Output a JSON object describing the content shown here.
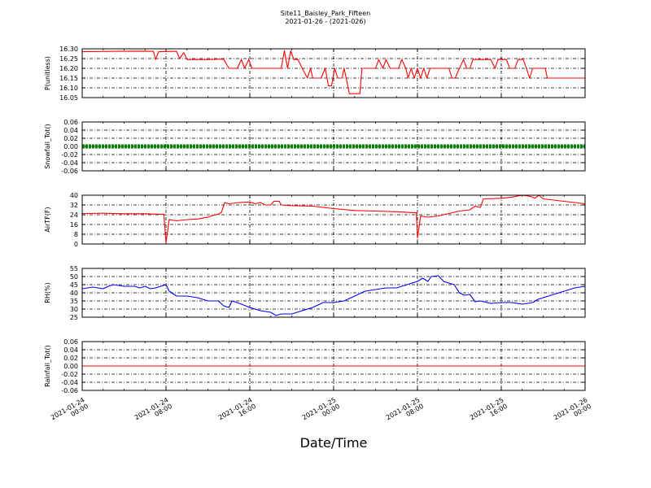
{
  "chart_data": {
    "type": "line",
    "title": "Site11_Baisley_Park_Fifteen",
    "subtitle": "2021-01-26 - (2021-026)",
    "xlabel": "Date/Time",
    "x_ticks": [
      "2021-01-24\n00:00",
      "2021-01-24\n08:00",
      "2021-01-24\n16:00",
      "2021-01-25\n00:00",
      "2021-01-25\n08:00",
      "2021-01-25\n16:00",
      "2021-01-26\n00:00"
    ],
    "x_range_hours": [
      0,
      48
    ],
    "grid": true,
    "panels": [
      {
        "ylabel": "P(unitless)",
        "ylim": [
          16.05,
          16.3
        ],
        "yticks": [
          "16.05",
          "16.10",
          "16.15",
          "16.20",
          "16.25",
          "16.30"
        ],
        "color": "#ff0000",
        "series": [
          {
            "values": [
              [
                0,
                16.285
              ],
              [
                3,
                16.287
              ],
              [
                6,
                16.288
              ],
              [
                6.8,
                16.287
              ],
              [
                7,
                16.245
              ],
              [
                7.3,
                16.285
              ],
              [
                9,
                16.287
              ],
              [
                9.3,
                16.25
              ],
              [
                9.7,
                16.28
              ],
              [
                10,
                16.245
              ],
              [
                12,
                16.245
              ],
              [
                13.5,
                16.247
              ],
              [
                14,
                16.2
              ],
              [
                14.8,
                16.2
              ],
              [
                15.2,
                16.245
              ],
              [
                15.5,
                16.2
              ],
              [
                15.9,
                16.245
              ],
              [
                16.2,
                16.2
              ],
              [
                19,
                16.2
              ],
              [
                19.3,
                16.29
              ],
              [
                19.6,
                16.2
              ],
              [
                19.9,
                16.29
              ],
              [
                20.2,
                16.245
              ],
              [
                20.6,
                16.245
              ],
              [
                21,
                16.2
              ],
              [
                21.5,
                16.15
              ],
              [
                21.8,
                16.2
              ],
              [
                22,
                16.15
              ],
              [
                22.8,
                16.15
              ],
              [
                23.2,
                16.2
              ],
              [
                23.5,
                16.11
              ],
              [
                23.8,
                16.11
              ],
              [
                24.1,
                16.2
              ],
              [
                24.4,
                16.15
              ],
              [
                24.8,
                16.15
              ],
              [
                25,
                16.2
              ],
              [
                25.2,
                16.15
              ],
              [
                25.5,
                16.07
              ],
              [
                26.5,
                16.07
              ],
              [
                26.7,
                16.2
              ],
              [
                28,
                16.2
              ],
              [
                28.3,
                16.245
              ],
              [
                28.7,
                16.2
              ],
              [
                29,
                16.245
              ],
              [
                29.4,
                16.2
              ],
              [
                30.2,
                16.2
              ],
              [
                30.5,
                16.245
              ],
              [
                30.9,
                16.2
              ],
              [
                31.1,
                16.15
              ],
              [
                31.4,
                16.2
              ],
              [
                31.7,
                16.15
              ],
              [
                32,
                16.2
              ],
              [
                32.3,
                16.15
              ],
              [
                32.6,
                16.2
              ],
              [
                32.9,
                16.15
              ],
              [
                33.2,
                16.2
              ],
              [
                35,
                16.2
              ],
              [
                35.3,
                16.15
              ],
              [
                35.6,
                16.15
              ],
              [
                36,
                16.2
              ],
              [
                36.4,
                16.245
              ],
              [
                36.7,
                16.2
              ],
              [
                37,
                16.2
              ],
              [
                37.3,
                16.245
              ],
              [
                39,
                16.245
              ],
              [
                39.4,
                16.2
              ],
              [
                39.7,
                16.245
              ],
              [
                40.5,
                16.245
              ],
              [
                40.8,
                16.2
              ],
              [
                41.3,
                16.2
              ],
              [
                41.6,
                16.245
              ],
              [
                42.1,
                16.245
              ],
              [
                42.4,
                16.2
              ],
              [
                42.7,
                16.15
              ],
              [
                43,
                16.2
              ],
              [
                44.2,
                16.2
              ],
              [
                44.4,
                16.15
              ],
              [
                48,
                16.15
              ]
            ]
          }
        ]
      },
      {
        "ylabel": "Snowfall_Tot()",
        "ylim": [
          -0.06,
          0.06
        ],
        "yticks": [
          "-0.06",
          "-0.04",
          "-0.02",
          "0.00",
          "0.02",
          "0.04",
          "0.06"
        ],
        "color": "#008000",
        "series": [
          {
            "values": [
              [
                0,
                0
              ],
              [
                48,
                0
              ]
            ],
            "style": "thick"
          }
        ]
      },
      {
        "ylabel": "AirTF(F)",
        "ylim": [
          0,
          40
        ],
        "yticks": [
          "0",
          "8",
          "16",
          "24",
          "32",
          "40"
        ],
        "color": "#ff0000",
        "series": [
          {
            "values": [
              [
                0,
                25
              ],
              [
                2,
                25.2
              ],
              [
                4,
                24.8
              ],
              [
                6,
                24.8
              ],
              [
                7.8,
                24.3
              ],
              [
                8,
                1
              ],
              [
                8.3,
                20
              ],
              [
                9,
                19
              ],
              [
                10,
                20
              ],
              [
                11,
                20.5
              ],
              [
                12,
                22
              ],
              [
                12.5,
                23.5
              ],
              [
                13,
                24.5
              ],
              [
                13.3,
                26
              ],
              [
                13.6,
                34
              ],
              [
                14,
                33
              ],
              [
                15,
                34
              ],
              [
                16,
                34.5
              ],
              [
                16.5,
                33
              ],
              [
                17,
                34
              ],
              [
                17.5,
                32
              ],
              [
                18,
                32
              ],
              [
                18.3,
                35
              ],
              [
                18.8,
                35
              ],
              [
                19,
                32
              ],
              [
                20,
                31.5
              ],
              [
                22,
                31
              ],
              [
                24,
                29
              ],
              [
                26,
                27.5
              ],
              [
                28,
                27
              ],
              [
                30,
                26.5
              ],
              [
                32,
                25.5
              ],
              [
                31.9,
                25
              ],
              [
                32,
                5
              ],
              [
                32.3,
                23
              ],
              [
                33,
                22
              ],
              [
                34,
                23
              ],
              [
                35,
                25
              ],
              [
                36,
                27
              ],
              [
                37,
                28
              ],
              [
                37.5,
                31
              ],
              [
                38,
                30
              ],
              [
                38.3,
                37
              ],
              [
                40,
                37.5
              ],
              [
                41,
                38.5
              ],
              [
                42,
                40
              ],
              [
                42.8,
                39
              ],
              [
                43.2,
                37.5
              ],
              [
                43.6,
                40
              ],
              [
                44,
                37
              ],
              [
                46,
                35
              ],
              [
                48,
                33
              ]
            ]
          }
        ]
      },
      {
        "ylabel": "RH(%)",
        "ylim": [
          25,
          55
        ],
        "yticks": [
          "25",
          "30",
          "35",
          "40",
          "45",
          "50",
          "55"
        ],
        "color": "#0000ff",
        "series": [
          {
            "values": [
              [
                0,
                42.5
              ],
              [
                1,
                43.5
              ],
              [
                2,
                42.5
              ],
              [
                2.5,
                44
              ],
              [
                3,
                45
              ],
              [
                4,
                44
              ],
              [
                5,
                44
              ],
              [
                5.5,
                43
              ],
              [
                6,
                44
              ],
              [
                6.5,
                42.5
              ],
              [
                7,
                43
              ],
              [
                7.5,
                44
              ],
              [
                8,
                45
              ],
              [
                8.3,
                41
              ],
              [
                9,
                38
              ],
              [
                10,
                38
              ],
              [
                11,
                37
              ],
              [
                12,
                35
              ],
              [
                13,
                35
              ],
              [
                13.5,
                32
              ],
              [
                14,
                31
              ],
              [
                14.3,
                35
              ],
              [
                15,
                33.5
              ],
              [
                16,
                31
              ],
              [
                17,
                29
              ],
              [
                18,
                28
              ],
              [
                18.5,
                26
              ],
              [
                19,
                27
              ],
              [
                20,
                27
              ],
              [
                21,
                29
              ],
              [
                22,
                31
              ],
              [
                23,
                34
              ],
              [
                24,
                34
              ],
              [
                25,
                35
              ],
              [
                26,
                38
              ],
              [
                27,
                41
              ],
              [
                28,
                42
              ],
              [
                29,
                43
              ],
              [
                30,
                43
              ],
              [
                31,
                45
              ],
              [
                32,
                47
              ],
              [
                32.5,
                49
              ],
              [
                33,
                47
              ],
              [
                33.3,
                50
              ],
              [
                34,
                50.5
              ],
              [
                34.5,
                47
              ],
              [
                35,
                46
              ],
              [
                35.5,
                45
              ],
              [
                36,
                40
              ],
              [
                36.5,
                38.5
              ],
              [
                37,
                39
              ],
              [
                37.5,
                34.5
              ],
              [
                38,
                35
              ],
              [
                39,
                33.5
              ],
              [
                40,
                34
              ],
              [
                41,
                34
              ],
              [
                42,
                33
              ],
              [
                43,
                34
              ],
              [
                43.5,
                36
              ],
              [
                44,
                37
              ],
              [
                45,
                39
              ],
              [
                46,
                41
              ],
              [
                47,
                43
              ],
              [
                48,
                44
              ]
            ]
          }
        ]
      },
      {
        "ylabel": "Rainfall_Tot()",
        "ylim": [
          -0.06,
          0.06
        ],
        "yticks": [
          "-0.06",
          "-0.04",
          "-0.02",
          "0.00",
          "0.02",
          "0.04",
          "0.06"
        ],
        "color": "#ff0000",
        "series": [
          {
            "values": [
              [
                0,
                0
              ],
              [
                48,
                0
              ]
            ]
          }
        ]
      }
    ]
  }
}
